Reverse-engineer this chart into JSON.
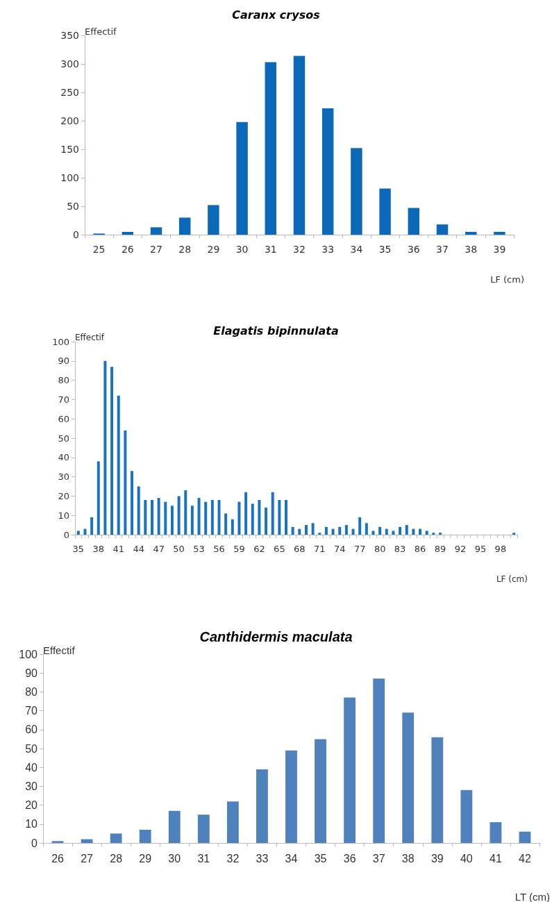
{
  "chart_data": [
    {
      "type": "bar",
      "title": "Caranx crysos",
      "xlabel": "LF (cm)",
      "ylabel": "Effectif",
      "categories": [
        "25",
        "26",
        "27",
        "28",
        "29",
        "30",
        "31",
        "32",
        "33",
        "34",
        "35",
        "36",
        "37",
        "38",
        "39"
      ],
      "values": [
        2,
        5,
        13,
        30,
        52,
        198,
        303,
        314,
        222,
        152,
        81,
        47,
        18,
        5,
        5
      ],
      "color": "#0b69b7",
      "ylim": [
        0,
        350
      ],
      "yticks": [
        0,
        50,
        100,
        150,
        200,
        250,
        300,
        350
      ],
      "grid": false
    },
    {
      "type": "bar",
      "title": "Elagatis bipinnulata",
      "xlabel": "LF (cm)",
      "ylabel": "Effectif",
      "categories": [
        "35",
        null,
        null,
        "38",
        null,
        null,
        "41",
        null,
        null,
        "44",
        null,
        null,
        "47",
        null,
        null,
        "50",
        null,
        null,
        "53",
        null,
        null,
        "56",
        null,
        null,
        "59",
        null,
        null,
        "62",
        null,
        null,
        "65",
        null,
        null,
        "68",
        null,
        null,
        "71",
        null,
        null,
        "74",
        null,
        null,
        "77",
        null,
        null,
        "80",
        null,
        null,
        "83",
        null,
        null,
        "86",
        null,
        null,
        "89",
        null,
        null,
        "92",
        null,
        null,
        "95",
        null,
        null,
        "98",
        null,
        null
      ],
      "values": [
        2,
        3,
        9,
        38,
        90,
        87,
        72,
        54,
        33,
        25,
        18,
        18,
        19,
        17,
        15,
        20,
        23,
        15,
        19,
        17,
        18,
        18,
        11,
        8,
        17,
        22,
        16,
        18,
        14,
        22,
        18,
        18,
        4,
        3,
        5,
        6,
        1,
        4,
        3,
        4,
        5,
        3,
        9,
        6,
        2,
        4,
        3,
        2,
        4,
        5,
        3,
        3,
        2,
        1,
        1,
        0,
        0,
        0,
        0,
        0,
        0,
        0,
        0,
        0,
        0,
        1
      ],
      "color": "#1a73c0",
      "ylim": [
        0,
        100
      ],
      "yticks": [
        0,
        10,
        20,
        30,
        40,
        50,
        60,
        70,
        80,
        90,
        100
      ],
      "grid": false
    },
    {
      "type": "bar",
      "title": "Canthidermis maculata",
      "xlabel": "LT (cm)",
      "ylabel": "Effectif",
      "categories": [
        "26",
        "27",
        "28",
        "29",
        "30",
        "31",
        "32",
        "33",
        "34",
        "35",
        "36",
        "37",
        "38",
        "39",
        "40",
        "41",
        "42"
      ],
      "values": [
        1,
        2,
        5,
        7,
        17,
        15,
        22,
        39,
        49,
        55,
        77,
        87,
        69,
        56,
        28,
        11,
        6
      ],
      "color": "#4f81bd",
      "ylim": [
        0,
        100
      ],
      "yticks": [
        0,
        10,
        20,
        30,
        40,
        50,
        60,
        70,
        80,
        90,
        100
      ],
      "grid": false
    }
  ]
}
